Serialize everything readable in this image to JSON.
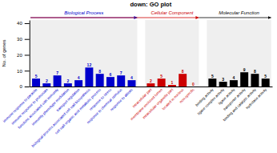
{
  "chart_data": {
    "type": "bar",
    "title": "down: GO plot",
    "ylabel": "No. of genes",
    "categories": [
      "immune response to parasite",
      "immune response to protozoan",
      "functions associated with immunity",
      "immunity phenotype modulation",
      "transport regulation",
      "biological process associated cell wall biosynthesis",
      "cell wall organic acid metabolic process",
      "response to stress",
      "response to chemical stimulus",
      "response to abiotic",
      "intracellular part",
      "membrane enclosed lumen",
      "intracellular organelle part",
      "located in nucleus",
      "non-specific",
      "binding activity",
      "ligase complex activity",
      "ligase activity",
      "transporter activity",
      "binding and catalytic activity",
      "hydrolase activity"
    ],
    "series": [
      {
        "name": "Biological Process",
        "color": "#0000cc",
        "values": [
          5,
          2,
          7,
          2,
          4,
          12,
          8,
          6,
          7,
          4,
          null,
          null,
          null,
          null,
          null,
          null,
          null,
          null,
          null,
          null,
          null
        ]
      },
      {
        "name": "Cellular Component",
        "color": "#cc0000",
        "values": [
          null,
          null,
          null,
          null,
          null,
          null,
          null,
          null,
          null,
          null,
          2,
          5,
          1,
          8,
          0,
          null,
          null,
          null,
          null,
          null,
          null
        ]
      },
      {
        "name": "Molecular Function",
        "color": "#000000",
        "values": [
          null,
          null,
          null,
          null,
          null,
          null,
          null,
          null,
          null,
          null,
          null,
          null,
          null,
          null,
          null,
          5,
          3,
          4,
          9,
          8,
          5
        ]
      }
    ],
    "ylim": [
      0,
      42
    ],
    "yticks": [
      0,
      10,
      20,
      30,
      40
    ],
    "data_labels": true,
    "grid": false
  }
}
